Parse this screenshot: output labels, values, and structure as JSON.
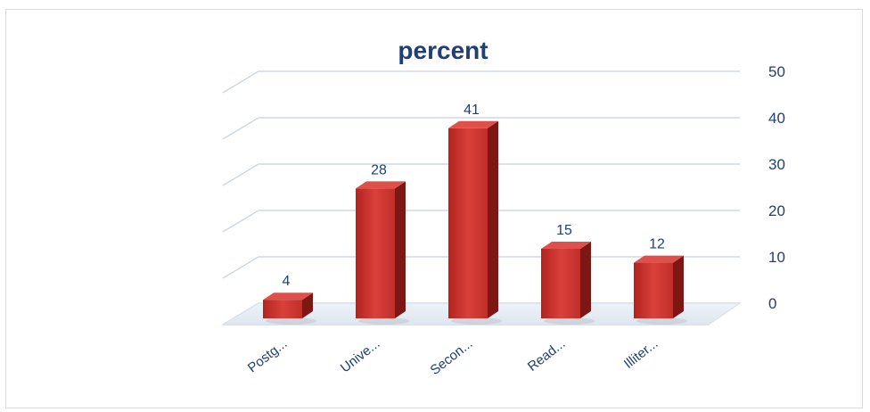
{
  "chart_data": {
    "type": "bar",
    "title": "percent",
    "categories": [
      "Postg...",
      "Unive...",
      "Secon...",
      "Read...",
      "Illiter..."
    ],
    "values": [
      4,
      28,
      41,
      15,
      12
    ],
    "ylim": [
      0,
      50
    ],
    "yticks": [
      0,
      10,
      20,
      30,
      40,
      50
    ],
    "grid": true,
    "legend": "none",
    "bar_color": "#c8322f"
  }
}
